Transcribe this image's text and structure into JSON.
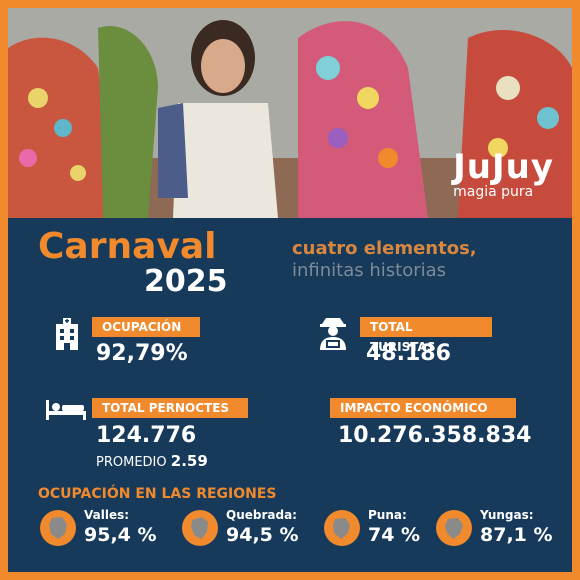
{
  "brand": {
    "logo": "JuJuy",
    "tagline": "magia pura"
  },
  "header": {
    "title": "Carnaval",
    "year": "2025",
    "slogan_line1": "cuatro elementos,",
    "slogan_line2": "infinitas historias"
  },
  "stats": {
    "ocupacion": {
      "label": "OCUPACIÓN",
      "value": "92,79%"
    },
    "turistas": {
      "label": "TOTAL TURISTAS",
      "value": "48.186"
    },
    "pernoctes": {
      "label": "TOTAL PERNOCTES",
      "value": "124.776",
      "promedio_label": "PROMEDIO",
      "promedio_value": "2.59"
    },
    "impacto": {
      "label": "IMPACTO ECONÓMICO",
      "value": "10.276.358.834"
    }
  },
  "regions": {
    "title": "OCUPACIÓN EN LAS REGIONES",
    "items": [
      {
        "name": "Valles:",
        "value": "95,4 %"
      },
      {
        "name": "Quebrada:",
        "value": "94,5 %"
      },
      {
        "name": "Puna:",
        "value": "74 %"
      },
      {
        "name": "Yungas:",
        "value": "87,1 %"
      }
    ]
  },
  "colors": {
    "accent": "#f08a2c",
    "panel": "#173a5b",
    "text": "#ffffff"
  },
  "icons": [
    "hotel-icon",
    "tourist-icon",
    "bed-icon",
    "region-map-icon"
  ]
}
